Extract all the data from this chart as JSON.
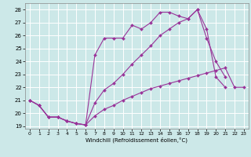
{
  "xlabel": "Windchill (Refroidissement éolien,°C)",
  "bg_color": "#cce8e8",
  "grid_color": "#ffffff",
  "line_color": "#993399",
  "ylim": [
    18.8,
    28.5
  ],
  "xlim": [
    -0.5,
    23.5
  ],
  "yticks": [
    19,
    20,
    21,
    22,
    23,
    24,
    25,
    26,
    27,
    28
  ],
  "xticks": [
    0,
    1,
    2,
    3,
    4,
    5,
    6,
    7,
    8,
    9,
    10,
    11,
    12,
    13,
    14,
    15,
    16,
    17,
    18,
    19,
    20,
    21,
    22,
    23
  ],
  "lines": [
    {
      "x": [
        0,
        1,
        2,
        3,
        4,
        5,
        6,
        7,
        8,
        9,
        10,
        11,
        12,
        13,
        14,
        15,
        16,
        17,
        18,
        19,
        20,
        21,
        22,
        23
      ],
      "y": [
        21.0,
        20.6,
        19.7,
        19.7,
        19.4,
        19.2,
        19.1,
        24.5,
        25.8,
        25.8,
        25.8,
        26.8,
        26.5,
        27.0,
        27.8,
        27.8,
        27.5,
        27.3,
        28.0,
        26.5,
        22.8,
        22.0,
        null,
        null
      ]
    },
    {
      "x": [
        0,
        1,
        2,
        3,
        4,
        5,
        6,
        7,
        8,
        9,
        10,
        11,
        12,
        13,
        14,
        15,
        16,
        17,
        18,
        19,
        20,
        21,
        22,
        23
      ],
      "y": [
        21.0,
        20.6,
        19.7,
        19.7,
        19.4,
        19.2,
        19.1,
        20.8,
        21.8,
        22.3,
        23.0,
        23.8,
        24.5,
        25.2,
        26.0,
        26.5,
        27.0,
        27.3,
        28.0,
        25.8,
        24.0,
        22.8,
        null,
        null
      ]
    },
    {
      "x": [
        0,
        1,
        2,
        3,
        4,
        5,
        6,
        7,
        8,
        9,
        10,
        11,
        12,
        13,
        14,
        15,
        16,
        17,
        18,
        19,
        20,
        21,
        22,
        23
      ],
      "y": [
        21.0,
        20.6,
        19.7,
        19.7,
        19.4,
        19.2,
        19.1,
        19.8,
        20.3,
        20.6,
        21.0,
        21.3,
        21.6,
        21.9,
        22.1,
        22.3,
        22.5,
        22.7,
        22.9,
        23.1,
        23.3,
        23.5,
        22.0,
        22.0
      ]
    }
  ]
}
